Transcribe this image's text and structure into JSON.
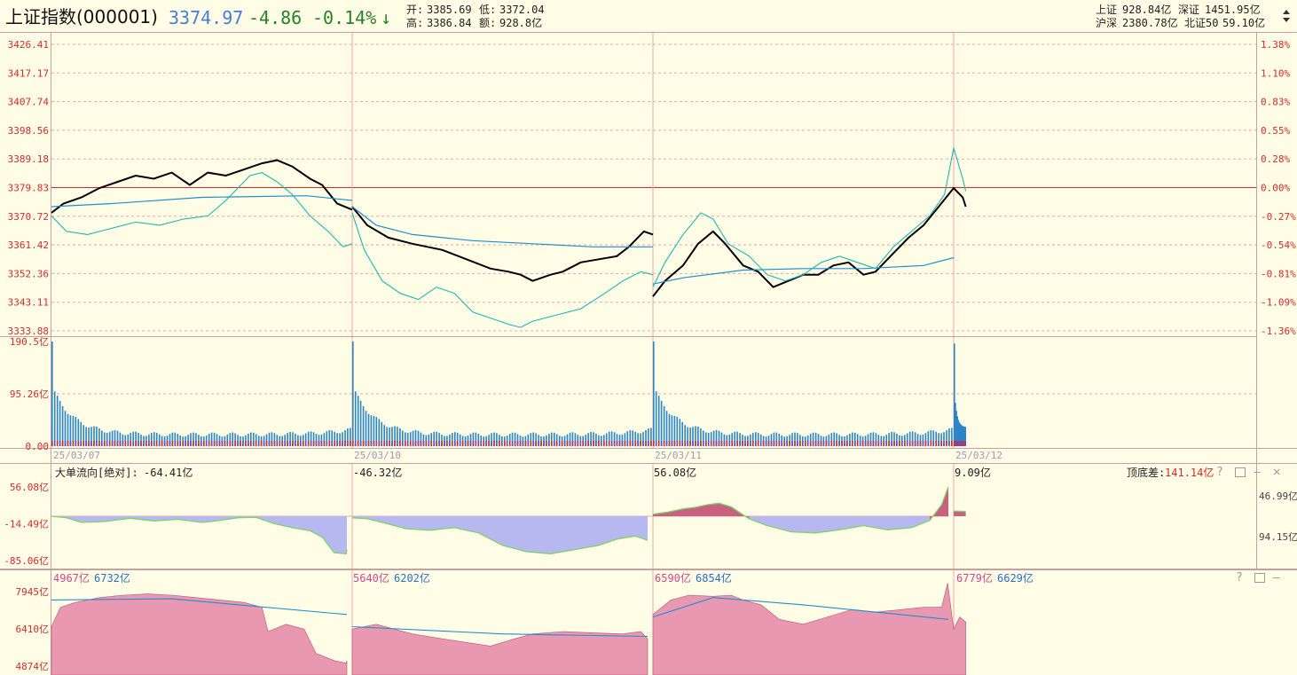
{
  "header": {
    "name": "上证指数(000001)",
    "price": "3374.97",
    "change": "-4.86",
    "change_pct": "-0.14%",
    "arrow": "↓",
    "open_label": "开:",
    "open": "3385.69",
    "low_label": "低:",
    "low": "3372.04",
    "high_label": "高:",
    "high": "3386.84",
    "amount_label": "额:",
    "amount": "928.8亿",
    "sh_label": "上证",
    "sh_value": "928.84亿",
    "sz_label": "深证",
    "sz_value": "1451.95亿",
    "hs_label": "沪深",
    "hs_value": "2380.78亿",
    "bz_label": "北证50",
    "bz_value": "59.10亿"
  },
  "colors": {
    "background": "#fffde6",
    "grid": "#f0a6a6",
    "up_red": "#d62b2b",
    "down_green": "#2a7f2a",
    "blue_text": "#4a7bd6",
    "price_line": "#000000",
    "avg_line": "#1f8fd0",
    "breadth_line": "#20b5b5",
    "volume_bar": "#2a86c8",
    "flow_pos_fill": "#c86080",
    "flow_neg_fill": "#b8b8f0",
    "flow_edge": "#7fd26b",
    "pink_fill": "#e898b0",
    "icons": "#9b9b9b"
  },
  "chart_data": [
    {
      "type": "line",
      "title": "上证指数(000001)",
      "y_ticks": [
        "3426.41",
        "3417.17",
        "3407.74",
        "3398.56",
        "3389.18",
        "3379.83",
        "3370.72",
        "3361.42",
        "3352.36",
        "3343.11",
        "3333.88"
      ],
      "pct_ticks": [
        "1.38%",
        "1.10%",
        "0.83%",
        "0.55%",
        "0.28%",
        "0.00%",
        "-0.27%",
        "-0.54%",
        "-0.81%",
        "-1.09%",
        "-1.36%"
      ],
      "prev_close": 3379.83,
      "ylim": [
        3333.88,
        3426.41
      ],
      "x_labels": [
        "25/03/07",
        "25/03/10",
        "25/03/11",
        "25/03/12"
      ],
      "series": [
        {
          "key": "price",
          "points": [
            [
              0,
              3372
            ],
            [
              0.04,
              3375
            ],
            [
              0.1,
              3377
            ],
            [
              0.16,
              3380
            ],
            [
              0.22,
              3382
            ],
            [
              0.28,
              3384
            ],
            [
              0.34,
              3383
            ],
            [
              0.4,
              3385
            ],
            [
              0.46,
              3381
            ],
            [
              0.52,
              3385
            ],
            [
              0.58,
              3384
            ],
            [
              0.64,
              3386
            ],
            [
              0.7,
              3388
            ],
            [
              0.75,
              3389
            ],
            [
              0.8,
              3387
            ],
            [
              0.86,
              3383
            ],
            [
              0.9,
              3381
            ],
            [
              0.95,
              3375
            ],
            [
              1,
              3373
            ],
            [
              1.0,
              3374
            ],
            [
              1.05,
              3368
            ],
            [
              1.12,
              3364
            ],
            [
              1.2,
              3362
            ],
            [
              1.3,
              3360
            ],
            [
              1.38,
              3357
            ],
            [
              1.46,
              3354
            ],
            [
              1.52,
              3353
            ],
            [
              1.56,
              3352
            ],
            [
              1.6,
              3350
            ],
            [
              1.66,
              3352
            ],
            [
              1.7,
              3353
            ],
            [
              1.76,
              3356
            ],
            [
              1.82,
              3357
            ],
            [
              1.88,
              3358
            ],
            [
              1.92,
              3361
            ],
            [
              1.97,
              3366
            ],
            [
              2,
              3365
            ],
            [
              2.0,
              3345
            ],
            [
              2.04,
              3350
            ],
            [
              2.1,
              3355
            ],
            [
              2.15,
              3362
            ],
            [
              2.2,
              3366
            ],
            [
              2.24,
              3362
            ],
            [
              2.3,
              3355
            ],
            [
              2.35,
              3353
            ],
            [
              2.4,
              3348
            ],
            [
              2.45,
              3350
            ],
            [
              2.5,
              3352
            ],
            [
              2.55,
              3352
            ],
            [
              2.6,
              3355
            ],
            [
              2.65,
              3356
            ],
            [
              2.7,
              3352
            ],
            [
              2.74,
              3353
            ],
            [
              2.8,
              3359
            ],
            [
              2.85,
              3364
            ],
            [
              2.9,
              3368
            ],
            [
              2.95,
              3374
            ],
            [
              3.0,
              3380
            ],
            [
              3.03,
              3377
            ],
            [
              3.04,
              3374
            ]
          ]
        },
        {
          "key": "avg",
          "points": [
            [
              0,
              3374
            ],
            [
              0.2,
              3375
            ],
            [
              0.5,
              3377
            ],
            [
              0.85,
              3377.5
            ],
            [
              1,
              3376
            ],
            [
              1.0,
              3374
            ],
            [
              1.08,
              3368
            ],
            [
              1.2,
              3365
            ],
            [
              1.4,
              3363
            ],
            [
              1.6,
              3362
            ],
            [
              1.8,
              3361
            ],
            [
              2,
              3361
            ],
            [
              2.0,
              3349
            ],
            [
              2.1,
              3351
            ],
            [
              2.3,
              3353.5
            ],
            [
              2.5,
              3354
            ],
            [
              2.7,
              3354
            ],
            [
              2.9,
              3355
            ],
            [
              3.0,
              3357.5
            ]
          ]
        },
        {
          "key": "breadth",
          "points": [
            [
              0,
              3371
            ],
            [
              0.05,
              3366
            ],
            [
              0.12,
              3365
            ],
            [
              0.2,
              3367
            ],
            [
              0.28,
              3369
            ],
            [
              0.36,
              3368
            ],
            [
              0.44,
              3370
            ],
            [
              0.52,
              3371
            ],
            [
              0.58,
              3376
            ],
            [
              0.62,
              3380
            ],
            [
              0.66,
              3384
            ],
            [
              0.7,
              3385
            ],
            [
              0.75,
              3382
            ],
            [
              0.8,
              3378
            ],
            [
              0.86,
              3371
            ],
            [
              0.92,
              3366
            ],
            [
              0.97,
              3361
            ],
            [
              1,
              3362
            ],
            [
              1.0,
              3372
            ],
            [
              1.04,
              3360
            ],
            [
              1.1,
              3350
            ],
            [
              1.16,
              3346
            ],
            [
              1.22,
              3344
            ],
            [
              1.28,
              3348
            ],
            [
              1.34,
              3346
            ],
            [
              1.4,
              3340
            ],
            [
              1.46,
              3338
            ],
            [
              1.52,
              3336
            ],
            [
              1.56,
              3335
            ],
            [
              1.6,
              3337
            ],
            [
              1.68,
              3339
            ],
            [
              1.76,
              3341
            ],
            [
              1.84,
              3346
            ],
            [
              1.9,
              3350
            ],
            [
              1.96,
              3353
            ],
            [
              2,
              3352
            ],
            [
              2.0,
              3348
            ],
            [
              2.04,
              3356
            ],
            [
              2.1,
              3365
            ],
            [
              2.16,
              3372
            ],
            [
              2.2,
              3370
            ],
            [
              2.25,
              3362
            ],
            [
              2.32,
              3358
            ],
            [
              2.38,
              3352
            ],
            [
              2.44,
              3350
            ],
            [
              2.5,
              3352
            ],
            [
              2.56,
              3356
            ],
            [
              2.62,
              3358
            ],
            [
              2.68,
              3356
            ],
            [
              2.74,
              3354
            ],
            [
              2.8,
              3361
            ],
            [
              2.86,
              3366
            ],
            [
              2.92,
              3371
            ],
            [
              2.97,
              3378
            ],
            [
              3.0,
              3393
            ],
            [
              3.03,
              3383
            ],
            [
              3.04,
              3379
            ]
          ]
        }
      ]
    },
    {
      "type": "bar",
      "y_ticks": [
        "190.5亿",
        "95.26亿",
        "0.00"
      ],
      "ylim": [
        0,
        190.5
      ]
    },
    {
      "type": "area",
      "title": "大单流向[绝对]:",
      "day_labels": [
        "-64.41亿",
        "-46.32亿",
        "56.08亿",
        "9.09亿"
      ],
      "extra_label": "顶底差:",
      "extra_value": "141.14亿",
      "y_ticks": [
        "56.08亿",
        "-14.49亿",
        "-85.06亿"
      ],
      "right_ticks": [
        "46.99亿",
        "94.15亿"
      ],
      "ylim": [
        -85.06,
        56.08
      ],
      "points": [
        [
          0,
          0
        ],
        [
          0.05,
          -3
        ],
        [
          0.1,
          -12
        ],
        [
          0.18,
          -10
        ],
        [
          0.26,
          -4
        ],
        [
          0.34,
          -9
        ],
        [
          0.42,
          -6
        ],
        [
          0.5,
          -12
        ],
        [
          0.56,
          -8
        ],
        [
          0.62,
          -3
        ],
        [
          0.68,
          -2
        ],
        [
          0.74,
          -14
        ],
        [
          0.8,
          -22
        ],
        [
          0.86,
          -28
        ],
        [
          0.9,
          -40
        ],
        [
          0.94,
          -70
        ],
        [
          0.98,
          -72
        ],
        [
          1,
          -64
        ],
        [
          1.0,
          -3
        ],
        [
          1.05,
          -5
        ],
        [
          1.1,
          -12
        ],
        [
          1.18,
          -24
        ],
        [
          1.26,
          -27
        ],
        [
          1.34,
          -22
        ],
        [
          1.42,
          -32
        ],
        [
          1.5,
          -56
        ],
        [
          1.58,
          -68
        ],
        [
          1.66,
          -72
        ],
        [
          1.74,
          -64
        ],
        [
          1.82,
          -56
        ],
        [
          1.88,
          -44
        ],
        [
          1.94,
          -38
        ],
        [
          2,
          -46
        ],
        [
          2.0,
          4
        ],
        [
          2.05,
          8
        ],
        [
          2.1,
          14
        ],
        [
          2.14,
          17
        ],
        [
          2.18,
          22
        ],
        [
          2.22,
          25
        ],
        [
          2.26,
          18
        ],
        [
          2.32,
          -5
        ],
        [
          2.38,
          -18
        ],
        [
          2.46,
          -30
        ],
        [
          2.54,
          -32
        ],
        [
          2.62,
          -26
        ],
        [
          2.7,
          -18
        ],
        [
          2.78,
          -26
        ],
        [
          2.86,
          -22
        ],
        [
          2.92,
          -8
        ],
        [
          2.96,
          22
        ],
        [
          3.0,
          56
        ],
        [
          3.0,
          10
        ],
        [
          3.04,
          9
        ]
      ]
    },
    {
      "type": "area",
      "day_labels": [
        [
          "4967亿",
          "6732亿"
        ],
        [
          "5640亿",
          "6202亿"
        ],
        [
          "6590亿",
          "6854亿"
        ],
        [
          "6779亿",
          "6629亿"
        ]
      ],
      "y_ticks": [
        "7945亿",
        "6410亿",
        "4874亿"
      ],
      "ylim": [
        4874,
        7945
      ],
      "points": [
        [
          0,
          6500
        ],
        [
          0.03,
          7300
        ],
        [
          0.08,
          7500
        ],
        [
          0.16,
          7700
        ],
        [
          0.24,
          7800
        ],
        [
          0.32,
          7850
        ],
        [
          0.4,
          7800
        ],
        [
          0.48,
          7700
        ],
        [
          0.56,
          7600
        ],
        [
          0.64,
          7500
        ],
        [
          0.7,
          7300
        ],
        [
          0.72,
          6300
        ],
        [
          0.78,
          6600
        ],
        [
          0.84,
          6400
        ],
        [
          0.88,
          5400
        ],
        [
          0.9,
          5300
        ],
        [
          0.94,
          5100
        ],
        [
          0.98,
          5000
        ],
        [
          1,
          5100
        ],
        [
          1.0,
          6400
        ],
        [
          1.08,
          6600
        ],
        [
          1.14,
          6400
        ],
        [
          1.2,
          6200
        ],
        [
          1.3,
          6000
        ],
        [
          1.38,
          5850
        ],
        [
          1.46,
          5700
        ],
        [
          1.54,
          6000
        ],
        [
          1.6,
          6200
        ],
        [
          1.7,
          6300
        ],
        [
          1.8,
          6250
        ],
        [
          1.9,
          6200
        ],
        [
          1.96,
          6300
        ],
        [
          2,
          6000
        ],
        [
          2.0,
          7000
        ],
        [
          2.06,
          7600
        ],
        [
          2.12,
          7800
        ],
        [
          2.2,
          7750
        ],
        [
          2.26,
          7800
        ],
        [
          2.3,
          7600
        ],
        [
          2.36,
          7400
        ],
        [
          2.42,
          6800
        ],
        [
          2.5,
          6600
        ],
        [
          2.58,
          6900
        ],
        [
          2.66,
          7200
        ],
        [
          2.74,
          7100
        ],
        [
          2.82,
          7200
        ],
        [
          2.9,
          7300
        ],
        [
          2.96,
          7300
        ],
        [
          2.98,
          8300
        ],
        [
          3.0,
          6400
        ],
        [
          3.02,
          6900
        ],
        [
          3.04,
          6700
        ]
      ],
      "line": [
        [
          0,
          7600
        ],
        [
          0.4,
          7650
        ],
        [
          1,
          7000
        ],
        [
          1.0,
          6500
        ],
        [
          1.5,
          6200
        ],
        [
          2,
          6100
        ],
        [
          2.0,
          6900
        ],
        [
          2.2,
          7700
        ],
        [
          2.5,
          7400
        ],
        [
          3.0,
          6800
        ]
      ]
    }
  ]
}
